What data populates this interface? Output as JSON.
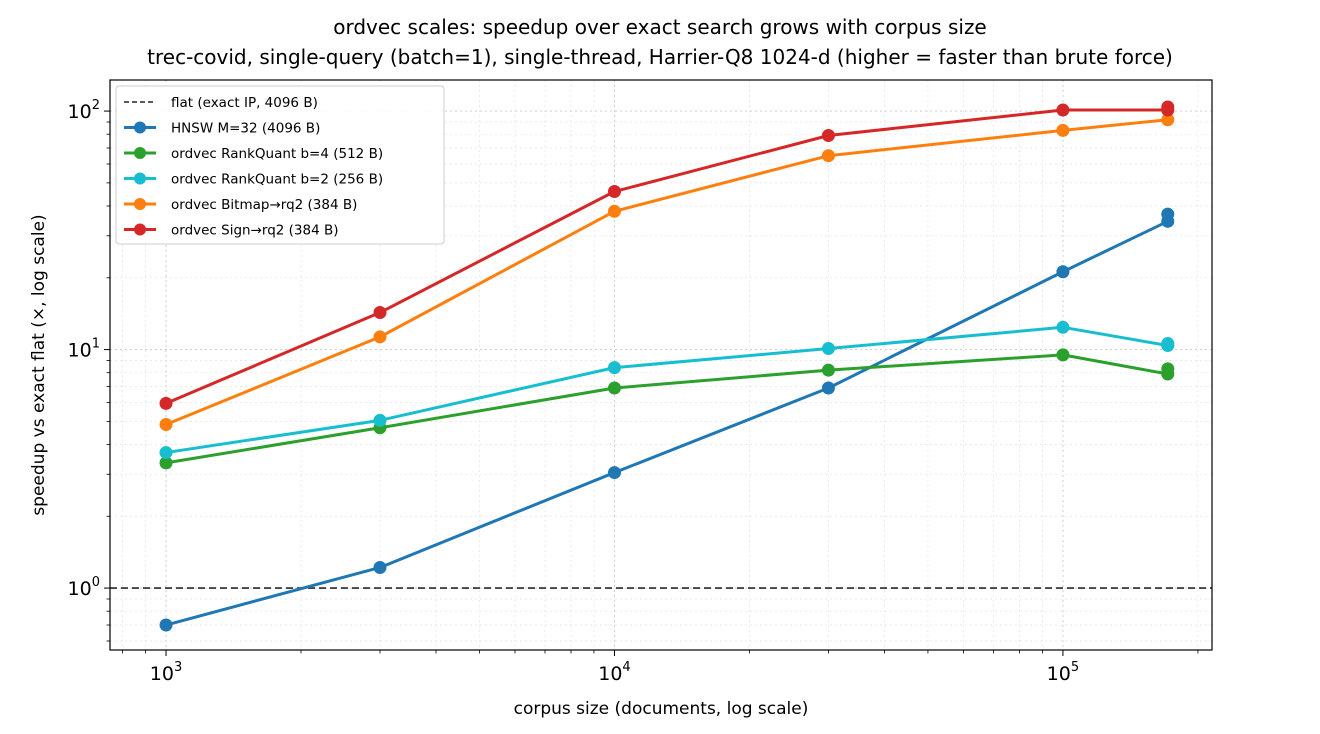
{
  "chart_data": {
    "type": "line",
    "title": "ordvec scales: speedup over exact search grows with corpus size",
    "subtitle": "trec-covid, single-query (batch=1), single-thread, Harrier-Q8 1024-d  (higher = faster than brute force)",
    "xlabel": "corpus size  (documents, log scale)",
    "ylabel": "speedup vs exact flat  (×, log scale)",
    "x_scale": "log",
    "y_scale": "log",
    "xlim": [
      750,
      215000
    ],
    "ylim": [
      0.55,
      135
    ],
    "x_ticks": [
      {
        "value": 1000,
        "base": "10",
        "exp": "3"
      },
      {
        "value": 10000,
        "base": "10",
        "exp": "4"
      },
      {
        "value": 100000,
        "base": "10",
        "exp": "5"
      }
    ],
    "y_ticks": [
      {
        "value": 1,
        "base": "10",
        "exp": "0"
      },
      {
        "value": 10,
        "base": "10",
        "exp": "1"
      },
      {
        "value": 100,
        "base": "10",
        "exp": "2"
      }
    ],
    "grid": "on (major and minor, dotted)",
    "legend_position": "upper-left",
    "reference_line": {
      "name": "flat (exact IP, 4096 B)",
      "y": 1,
      "color": "#444444",
      "style": "dashed"
    },
    "series": [
      {
        "name": "HNSW M=32 (4096 B)",
        "color": "#1f77b4",
        "x": [
          1000,
          3000,
          10000,
          30000,
          100000,
          171332
        ],
        "y": [
          0.7,
          1.22,
          3.05,
          6.9,
          21.2,
          34.5
        ],
        "extra_points": [
          {
            "x": 171332,
            "y": 37.0
          }
        ]
      },
      {
        "name": "ordvec RankQuant b=4 (512 B)",
        "color": "#2ca02c",
        "x": [
          1000,
          3000,
          10000,
          30000,
          100000,
          171332
        ],
        "y": [
          3.35,
          4.7,
          6.9,
          8.2,
          9.5,
          7.9
        ],
        "extra_points": [
          {
            "x": 171332,
            "y": 8.3
          }
        ]
      },
      {
        "name": "ordvec RankQuant b=2 (256 B)",
        "color": "#17becf",
        "x": [
          1000,
          3000,
          10000,
          30000,
          100000,
          171332
        ],
        "y": [
          3.7,
          5.05,
          8.4,
          10.1,
          12.4,
          10.4
        ],
        "extra_points": [
          {
            "x": 171332,
            "y": 10.6
          }
        ]
      },
      {
        "name": "ordvec Bitmap→rq2 (384 B)",
        "color": "#ff7f0e",
        "x": [
          1000,
          3000,
          10000,
          30000,
          100000,
          171332
        ],
        "y": [
          4.85,
          11.3,
          38.0,
          65.0,
          83.0,
          92.0
        ],
        "extra_points": []
      },
      {
        "name": "ordvec Sign→rq2 (384 B)",
        "color": "#d62728",
        "x": [
          1000,
          3000,
          10000,
          30000,
          100000,
          171332
        ],
        "y": [
          5.95,
          14.3,
          46.0,
          79.0,
          101.0,
          101.0
        ],
        "extra_points": [
          {
            "x": 171332,
            "y": 104.0
          }
        ]
      }
    ]
  }
}
